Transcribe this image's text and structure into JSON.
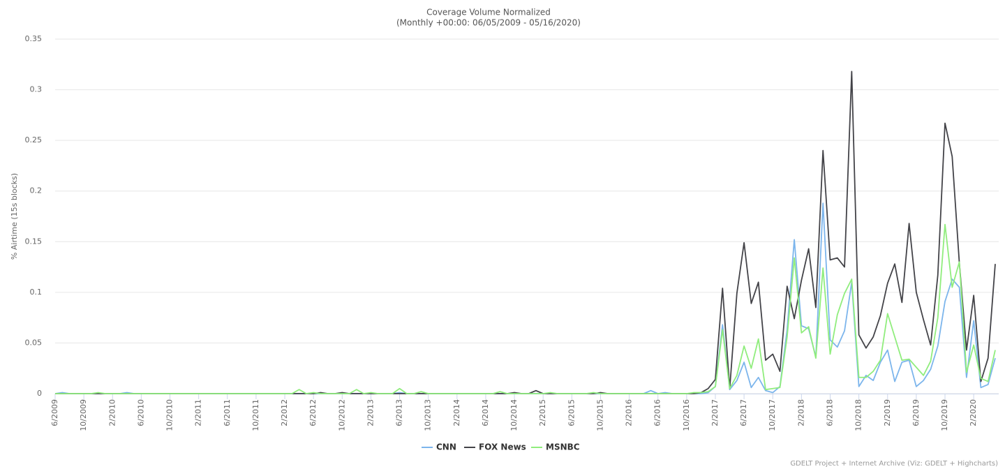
{
  "chart_data": {
    "type": "line",
    "title": "Coverage Volume Normalized",
    "subtitle": "(Monthly +00:00: 06/05/2009 - 05/16/2020)",
    "y_label": "% Airtime (15s blocks)",
    "credit": "GDELT Project + Internet Archive (Viz: GDELT + Highcharts)",
    "categories": [
      "6/2009",
      null,
      null,
      null,
      "10/2009",
      null,
      null,
      null,
      "2/2010",
      null,
      null,
      null,
      "6/2010",
      null,
      null,
      null,
      "10/2010",
      null,
      null,
      null,
      "2/2011",
      null,
      null,
      null,
      "6/2011",
      null,
      null,
      null,
      "10/2011",
      null,
      null,
      null,
      "2/2012",
      null,
      null,
      null,
      "6/2012",
      null,
      null,
      null,
      "10/2012",
      null,
      null,
      null,
      "2/2013",
      null,
      null,
      null,
      "6/2013",
      null,
      null,
      null,
      "10/2013",
      null,
      null,
      null,
      "2/2014",
      null,
      null,
      null,
      "6/2014",
      null,
      null,
      null,
      "10/2014",
      null,
      null,
      null,
      "2/2015",
      null,
      null,
      null,
      "6/2015",
      null,
      null,
      null,
      "10/2015",
      null,
      null,
      null,
      "2/2016",
      null,
      null,
      null,
      "6/2016",
      null,
      null,
      null,
      "10/2016",
      null,
      null,
      null,
      "2/2017",
      null,
      null,
      null,
      "6/2017",
      null,
      null,
      null,
      "10/2017",
      null,
      null,
      null,
      "2/2018",
      null,
      null,
      null,
      "6/2018",
      null,
      null,
      null,
      "10/2018",
      null,
      null,
      null,
      "2/2019",
      null,
      null,
      null,
      "6/2019",
      null,
      null,
      null,
      "10/2019",
      null,
      null,
      null,
      "2/2020",
      null,
      null,
      null
    ],
    "ylim": [
      0,
      0.35
    ],
    "yticks": [
      0,
      0.05,
      0.1,
      0.15,
      0.2,
      0.25,
      0.3,
      0.35
    ],
    "grid": true,
    "legend": "bottom",
    "series": [
      {
        "name": "CNN",
        "color": "#7cb5ec",
        "values": [
          0,
          0.001,
          0,
          0,
          0,
          0,
          0,
          0,
          0,
          0,
          0.001,
          0,
          0,
          0,
          0,
          0,
          0,
          0,
          0,
          0,
          0,
          0,
          0,
          0,
          0,
          0,
          0,
          0,
          0,
          0,
          0,
          0,
          0,
          0,
          0,
          0,
          0,
          0,
          0,
          0,
          0,
          0,
          0,
          0,
          0,
          0,
          0,
          0,
          0.001,
          0,
          0,
          0,
          0,
          0,
          0,
          0,
          0,
          0,
          0,
          0,
          0,
          0,
          0,
          0,
          0,
          0,
          0,
          0,
          0,
          0,
          0,
          0,
          0,
          0,
          0,
          0,
          0,
          0,
          0,
          0,
          0,
          0,
          0,
          0.003,
          0,
          0.001,
          0,
          0,
          0,
          0,
          0,
          0.001,
          0.007,
          0.068,
          0.004,
          0.013,
          0.031,
          0.006,
          0.016,
          0.003,
          0.001,
          0.007,
          0.063,
          0.152,
          0.067,
          0.064,
          0.036,
          0.188,
          0.053,
          0.046,
          0.062,
          0.11,
          0.007,
          0.018,
          0.013,
          0.031,
          0.043,
          0.012,
          0.031,
          0.033,
          0.007,
          0.013,
          0.024,
          0.047,
          0.091,
          0.113,
          0.105,
          0.016,
          0.072,
          0.006,
          0.009,
          0.035
        ]
      },
      {
        "name": "FOX News",
        "color": "#434348",
        "values": [
          0,
          0,
          0,
          0,
          0,
          0,
          0,
          0,
          0,
          0,
          0,
          0,
          0,
          0,
          0,
          0,
          0,
          0,
          0,
          0,
          0,
          0,
          0,
          0,
          0,
          0,
          0,
          0,
          0,
          0,
          0,
          0,
          0,
          0,
          0,
          0,
          0,
          0.001,
          0,
          0,
          0.001,
          0,
          0,
          0,
          0,
          0,
          0,
          0,
          0,
          0,
          0,
          0,
          0,
          0,
          0,
          0,
          0,
          0,
          0,
          0,
          0,
          0,
          0,
          0,
          0.001,
          0,
          0,
          0.003,
          0,
          0,
          0,
          0,
          0,
          0,
          0,
          0,
          0.001,
          0,
          0,
          0,
          0,
          0,
          0,
          0,
          0,
          0,
          0,
          0,
          0,
          0,
          0.001,
          0.005,
          0.014,
          0.104,
          0.005,
          0.099,
          0.149,
          0.089,
          0.11,
          0.033,
          0.039,
          0.022,
          0.106,
          0.074,
          0.112,
          0.143,
          0.085,
          0.24,
          0.132,
          0.134,
          0.125,
          0.318,
          0.058,
          0.045,
          0.056,
          0.077,
          0.109,
          0.128,
          0.09,
          0.168,
          0.1,
          0.073,
          0.048,
          0.117,
          0.267,
          0.234,
          0.129,
          0.043,
          0.097,
          0.012,
          0.035,
          0.128
        ]
      },
      {
        "name": "MSNBC",
        "color": "#90ed7d",
        "values": [
          0,
          0,
          0,
          0,
          0,
          0,
          0.001,
          0,
          0,
          0,
          0,
          0,
          0,
          0,
          0,
          0,
          0,
          0,
          0,
          0,
          0,
          0,
          0,
          0,
          0,
          0,
          0,
          0,
          0,
          0,
          0,
          0,
          0,
          0,
          0.004,
          0,
          0.001,
          0,
          0,
          0,
          0,
          0,
          0.004,
          0,
          0.001,
          0,
          0,
          0,
          0.005,
          0,
          0,
          0.002,
          0,
          0,
          0,
          0,
          0,
          0,
          0,
          0,
          0,
          0,
          0.002,
          0,
          0,
          0,
          0,
          0,
          0,
          0.001,
          0,
          0,
          0,
          0,
          0,
          0.001,
          0,
          0,
          0,
          0,
          0,
          0,
          0,
          0,
          0,
          0,
          0,
          0,
          0,
          0.001,
          0.001,
          0.002,
          0.007,
          0.063,
          0.005,
          0.018,
          0.047,
          0.025,
          0.054,
          0.004,
          0.005,
          0.006,
          0.056,
          0.134,
          0.06,
          0.066,
          0.035,
          0.124,
          0.039,
          0.078,
          0.099,
          0.113,
          0.016,
          0.016,
          0.022,
          0.033,
          0.079,
          0.056,
          0.033,
          0.034,
          0.026,
          0.018,
          0.032,
          0.075,
          0.167,
          0.105,
          0.13,
          0.021,
          0.048,
          0.015,
          0.012,
          0.043
        ]
      }
    ]
  }
}
